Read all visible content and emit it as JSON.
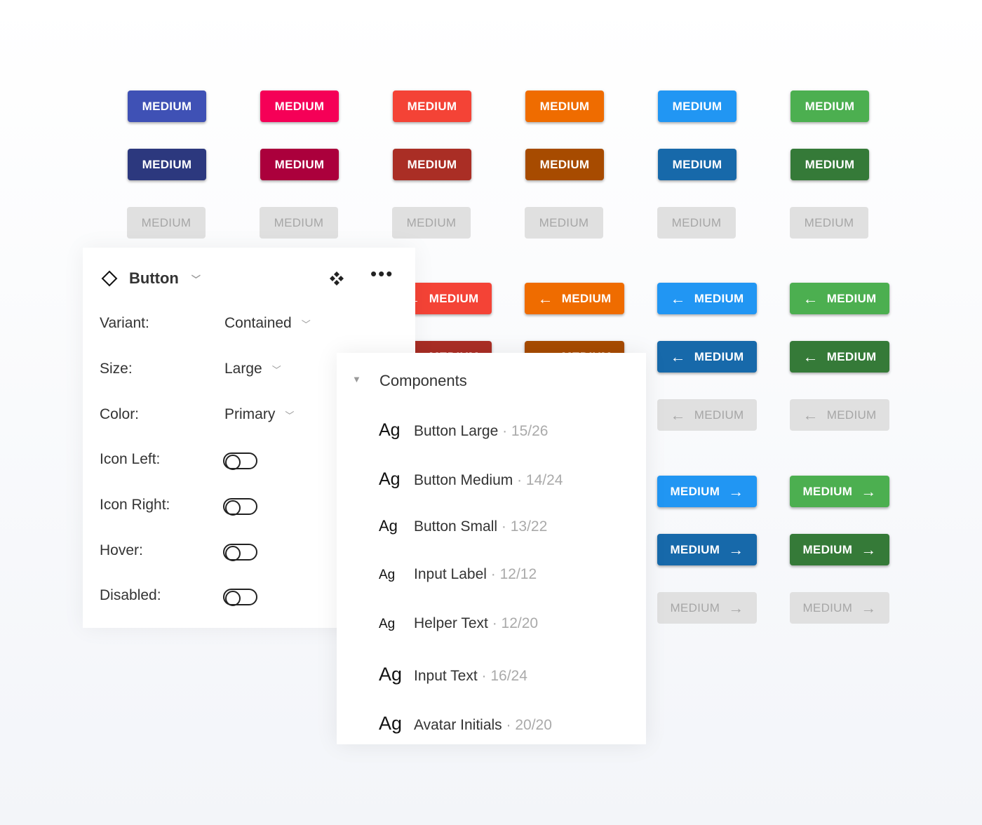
{
  "button_label": "MEDIUM",
  "colors": {
    "main": [
      "#3f51b5",
      "#f50057",
      "#f44336",
      "#ef6c00",
      "#2196f3",
      "#4caf50"
    ],
    "dark": [
      "#2c387e",
      "#ab003c",
      "#aa2e25",
      "#a74b00",
      "#1769aa",
      "#357a38"
    ],
    "disabled_bg": "#e0e0e0",
    "disabled_text": "#a6a6a6"
  },
  "panel": {
    "title": "Button",
    "props": [
      {
        "label": "Variant:",
        "value": "Contained",
        "type": "select"
      },
      {
        "label": "Size:",
        "value": "Large",
        "type": "select"
      },
      {
        "label": "Color:",
        "value": "Primary",
        "type": "select"
      },
      {
        "label": "Icon Left:",
        "type": "toggle",
        "on": false
      },
      {
        "label": "Icon Right:",
        "type": "toggle",
        "on": false
      },
      {
        "label": "Hover:",
        "type": "toggle",
        "on": false
      },
      {
        "label": "Disabled:",
        "type": "toggle",
        "on": false
      }
    ]
  },
  "components": {
    "title": "Components",
    "items": [
      {
        "ag": "Ag",
        "name": "Button Large",
        "meta": "· 15/26"
      },
      {
        "ag": "Ag",
        "name": "Button Medium",
        "meta": "· 14/24"
      },
      {
        "ag": "Ag",
        "name": "Button Small",
        "meta": "· 13/22"
      },
      {
        "ag": "Ag",
        "name": "Input Label",
        "meta": "· 12/12"
      },
      {
        "ag": "Ag",
        "name": "Helper Text",
        "meta": "· 12/20"
      },
      {
        "ag": "Ag",
        "name": "Input Text",
        "meta": "· 16/24"
      },
      {
        "ag": "Ag",
        "name": "Avatar Initials",
        "meta": "· 20/20"
      }
    ]
  }
}
